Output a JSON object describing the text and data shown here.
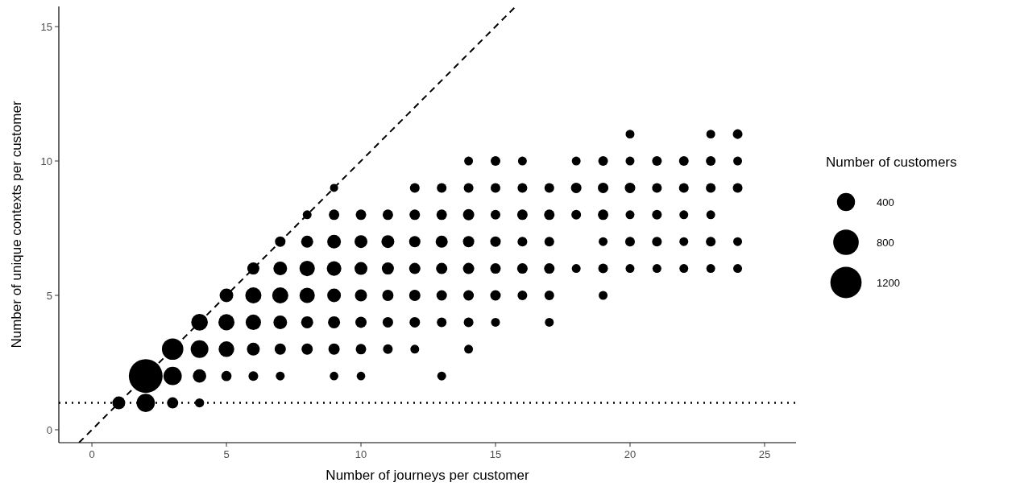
{
  "chart_data": {
    "type": "bubble",
    "xlabel": "Number of journeys per customer",
    "ylabel": "Number of unique contexts per customer",
    "legend_title": "Number of customers",
    "size_legend": [
      400,
      800,
      1200
    ],
    "xlim": [
      -1.23,
      26.17
    ],
    "xticks": [
      0,
      5,
      10,
      15,
      20,
      25
    ],
    "ylim": [
      -0.48,
      15.75
    ],
    "yticks": [
      0,
      5,
      10,
      15
    ],
    "ref_lines": [
      {
        "axis": "y",
        "value": 1,
        "line_style": "dotted",
        "color": "#000000"
      }
    ],
    "series": [
      {
        "color": "#000000",
        "x": [
          1,
          2,
          3,
          4,
          2,
          3,
          4,
          5,
          6,
          7,
          9,
          10,
          13,
          3,
          4,
          5,
          6,
          7,
          8,
          9,
          10,
          11,
          12,
          14,
          4,
          5,
          6,
          7,
          8,
          9,
          10,
          11,
          12,
          13,
          14,
          15,
          17,
          5,
          6,
          7,
          8,
          9,
          10,
          11,
          12,
          13,
          14,
          15,
          16,
          17,
          19,
          6,
          7,
          8,
          9,
          10,
          11,
          12,
          13,
          14,
          15,
          16,
          17,
          18,
          19,
          20,
          21,
          22,
          23,
          24,
          7,
          8,
          9,
          10,
          11,
          12,
          13,
          14,
          15,
          16,
          17,
          19,
          20,
          21,
          22,
          23,
          24,
          8,
          9,
          10,
          11,
          12,
          13,
          14,
          15,
          16,
          17,
          18,
          19,
          20,
          21,
          22,
          23,
          9,
          12,
          13,
          14,
          15,
          16,
          17,
          18,
          19,
          20,
          21,
          22,
          23,
          24,
          14,
          15,
          16,
          18,
          19,
          20,
          21,
          22,
          23,
          24,
          20,
          23,
          24
        ],
        "values": [
          1,
          1,
          1,
          1,
          2,
          2,
          2,
          2,
          2,
          2,
          2,
          2,
          2,
          3,
          3,
          3,
          3,
          3,
          3,
          3,
          3,
          3,
          3,
          3,
          4,
          4,
          4,
          4,
          4,
          4,
          4,
          4,
          4,
          4,
          4,
          4,
          4,
          5,
          5,
          5,
          5,
          5,
          5,
          5,
          5,
          5,
          5,
          5,
          5,
          5,
          5,
          6,
          6,
          6,
          6,
          6,
          6,
          6,
          6,
          6,
          6,
          6,
          6,
          6,
          6,
          6,
          6,
          6,
          6,
          6,
          7,
          7,
          7,
          7,
          7,
          7,
          7,
          7,
          7,
          7,
          7,
          7,
          7,
          7,
          7,
          7,
          7,
          8,
          8,
          8,
          8,
          8,
          8,
          8,
          8,
          8,
          8,
          8,
          8,
          8,
          8,
          8,
          8,
          9,
          9,
          9,
          9,
          9,
          9,
          9,
          9,
          9,
          9,
          9,
          9,
          9,
          9,
          10,
          10,
          10,
          10,
          10,
          10,
          10,
          10,
          10,
          10,
          11,
          11,
          11
        ],
        "sizes": [
          204,
          410,
          156,
          103,
          1400,
          410,
          220,
          127,
          115,
          96,
          90,
          90,
          96,
          565,
          385,
          300,
          204,
          156,
          156,
          156,
          135,
          115,
          96,
          96,
          340,
          320,
          290,
          230,
          180,
          180,
          156,
          135,
          135,
          115,
          115,
          96,
          96,
          230,
          320,
          320,
          290,
          230,
          180,
          156,
          156,
          135,
          135,
          135,
          115,
          115,
          96,
          180,
          230,
          290,
          260,
          204,
          180,
          156,
          156,
          156,
          135,
          135,
          135,
          96,
          115,
          96,
          96,
          96,
          96,
          96,
          135,
          180,
          230,
          204,
          204,
          156,
          180,
          156,
          135,
          115,
          115,
          96,
          115,
          115,
          96,
          115,
          96,
          96,
          135,
          135,
          135,
          135,
          135,
          156,
          115,
          135,
          135,
          115,
          135,
          96,
          115,
          96,
          96,
          80,
          115,
          115,
          115,
          115,
          115,
          115,
          135,
          135,
          135,
          115,
          115,
          115,
          115,
          96,
          115,
          96,
          96,
          115,
          96,
          115,
          115,
          115,
          96,
          96,
          96,
          115
        ]
      },
      {
        "type": "line",
        "color": "#000000",
        "line_style": "dashed",
        "x": [
          -0.48,
          15.75
        ],
        "values": [
          -0.48,
          15.75
        ]
      }
    ]
  }
}
